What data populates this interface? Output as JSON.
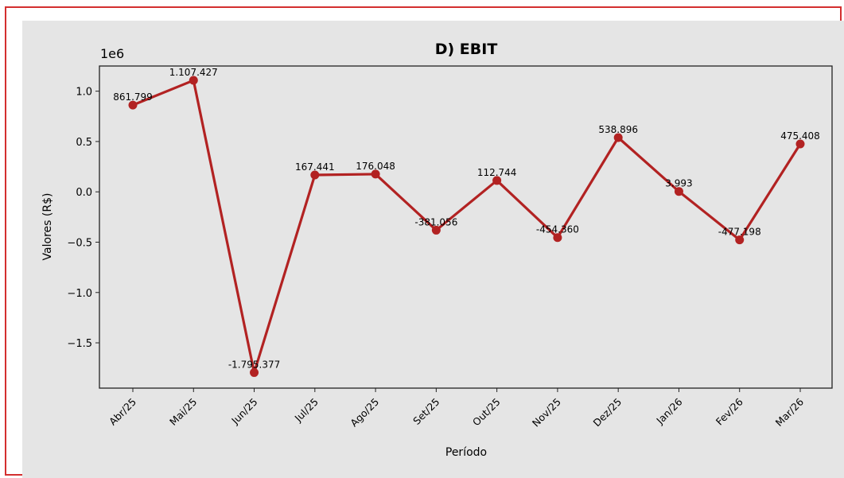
{
  "chart_data": {
    "type": "line",
    "title": "D) EBIT",
    "xlabel": "Período",
    "ylabel": "Valores (R$)",
    "y_offset_label": "1e6",
    "categories": [
      "Abr/25",
      "Mai/25",
      "Jun/25",
      "Jul/25",
      "Ago/25",
      "Set/25",
      "Out/25",
      "Nov/25",
      "Dez/25",
      "Jan/26",
      "Fev/26",
      "Mar/26"
    ],
    "values": [
      861799,
      1107427,
      -1795377,
      167441,
      176048,
      -381056,
      112744,
      -454360,
      538896,
      3993,
      -477198,
      475408
    ],
    "data_labels": [
      "861.799",
      "1.107.427",
      "-1.795.377",
      "167.441",
      "176.048",
      "-381.056",
      "112.744",
      "-454.360",
      "538.896",
      "3.993",
      "-477.198",
      "475.408"
    ],
    "yticks": [
      1.0,
      0.5,
      0.0,
      -0.5,
      -1.0,
      -1.5
    ],
    "ytick_labels": [
      "1.0",
      "0.5",
      "0.0",
      "−0.5",
      "−1.0",
      "−1.5"
    ],
    "ylim": [
      -1.95,
      1.25
    ],
    "grid": false,
    "color": "#b22222"
  }
}
